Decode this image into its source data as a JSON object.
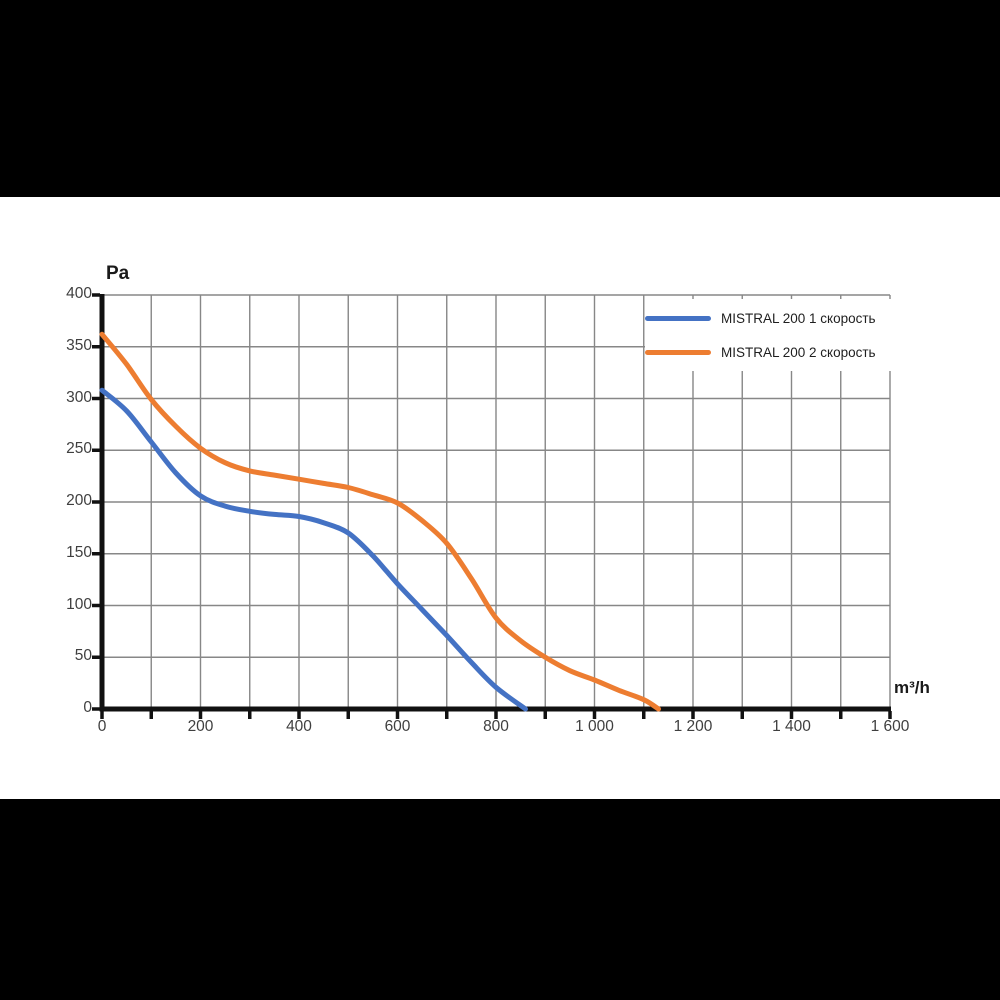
{
  "letterbox": {
    "top_bar": "black",
    "bottom_bar": "black"
  },
  "chart_data": {
    "type": "line",
    "title": "",
    "xlabel": "m³/h",
    "ylabel": "Pa",
    "grid": true,
    "legend_position": "top-right",
    "x_axis": {
      "min": 0,
      "max": 1600,
      "grid_step": 100,
      "tick_step": 100,
      "label_step": 200,
      "tick_labels": [
        "0",
        "200",
        "400",
        "600",
        "800",
        "1 000",
        "1 200",
        "1 400",
        "1 600"
      ]
    },
    "y_axis": {
      "min": 0,
      "max": 400,
      "grid_step": 50,
      "tick_step": 50,
      "label_step": 50,
      "tick_labels": [
        "0",
        "50",
        "100",
        "150",
        "200",
        "250",
        "300",
        "350",
        "400"
      ]
    },
    "series": [
      {
        "name": "MISTRAL 200 1 скорость",
        "color": "#4472C4",
        "points": [
          [
            0,
            308
          ],
          [
            50,
            288
          ],
          [
            100,
            258
          ],
          [
            150,
            228
          ],
          [
            200,
            206
          ],
          [
            250,
            196
          ],
          [
            300,
            191
          ],
          [
            350,
            188
          ],
          [
            400,
            186
          ],
          [
            450,
            180
          ],
          [
            500,
            170
          ],
          [
            550,
            148
          ],
          [
            600,
            121
          ],
          [
            650,
            96
          ],
          [
            700,
            71
          ],
          [
            750,
            45
          ],
          [
            800,
            21
          ],
          [
            860,
            0
          ]
        ]
      },
      {
        "name": "MISTRAL 200 2 скорость",
        "color": "#ED7D31",
        "points": [
          [
            0,
            362
          ],
          [
            50,
            333
          ],
          [
            100,
            299
          ],
          [
            150,
            273
          ],
          [
            200,
            252
          ],
          [
            250,
            238
          ],
          [
            300,
            230
          ],
          [
            350,
            226
          ],
          [
            400,
            222
          ],
          [
            450,
            218
          ],
          [
            500,
            214
          ],
          [
            550,
            207
          ],
          [
            600,
            199
          ],
          [
            650,
            182
          ],
          [
            700,
            160
          ],
          [
            750,
            126
          ],
          [
            800,
            88
          ],
          [
            850,
            66
          ],
          [
            900,
            50
          ],
          [
            950,
            37
          ],
          [
            1000,
            28
          ],
          [
            1050,
            18
          ],
          [
            1100,
            9
          ],
          [
            1130,
            0
          ]
        ]
      }
    ],
    "style": {
      "grid_color": "#878787",
      "axis_color": "#111111",
      "curve_width": 5
    }
  }
}
